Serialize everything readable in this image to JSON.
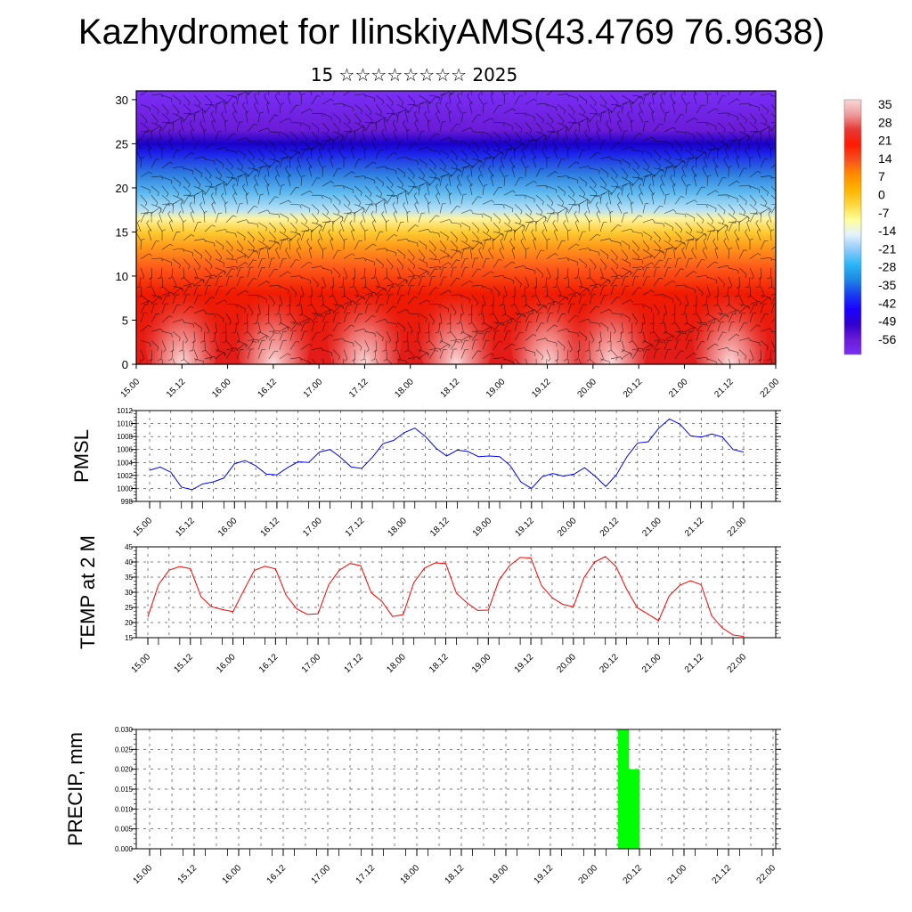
{
  "header": {
    "title": "Kazhydromet for IlinskiyAMS(43.4769 76.9638)",
    "subtitle": "15 ☆☆☆☆☆☆☆☆ 2025"
  },
  "chart_data": [
    {
      "type": "heatmap",
      "title": "",
      "xlabel": "",
      "ylabel": "",
      "x_ticks": [
        "15.00",
        "15.12",
        "16.00",
        "16.12",
        "17.00",
        "17.12",
        "18.00",
        "18.12",
        "19.00",
        "19.12",
        "20.00",
        "20.12",
        "21.00",
        "21.12",
        "22.00"
      ],
      "y_ticks": [
        0,
        5,
        10,
        15,
        20,
        25,
        30
      ],
      "ylim": [
        0,
        31
      ],
      "colorbar": {
        "labels": [
          35,
          28,
          21,
          14,
          7,
          0,
          -7,
          -14,
          -21,
          -28,
          -35,
          -42,
          -49,
          -56
        ],
        "colors": [
          "#f8d8d8",
          "#ef9a9a",
          "#e53935",
          "#ff1a00",
          "#f4511e",
          "#ff8c00",
          "#ffb300",
          "#ffd740",
          "#ffff99",
          "#e3f2fd",
          "#90caf9",
          "#29b6f6",
          "#1e88e5",
          "#1a3cf0",
          "#1a00ff",
          "#3300cc",
          "#6a1bd6",
          "#7b2ff7"
        ]
      },
      "overlay": "wind barbs",
      "band_colors": [
        {
          "z": 0,
          "color": "#e21c1c"
        },
        {
          "z": 8,
          "color": "#f01a00"
        },
        {
          "z": 11,
          "color": "#ff5a1a"
        },
        {
          "z": 13.5,
          "color": "#ff9e1a"
        },
        {
          "z": 15,
          "color": "#ffcc33"
        },
        {
          "z": 16.5,
          "color": "#fff3a0"
        },
        {
          "z": 17.5,
          "color": "#b7e1f5"
        },
        {
          "z": 19.5,
          "color": "#5cb8ee"
        },
        {
          "z": 21.5,
          "color": "#2e7fe0"
        },
        {
          "z": 24,
          "color": "#1c1ee8"
        },
        {
          "z": 25,
          "color": "#1a00c8"
        },
        {
          "z": 26.5,
          "color": "#6a1bd6"
        },
        {
          "z": 31,
          "color": "#7b2ff7"
        }
      ],
      "hot_cells": [
        1.0,
        3.0,
        5.0,
        7.0,
        9.0,
        10.4,
        13.0
      ]
    },
    {
      "type": "line",
      "ylabel": "PMSL",
      "ylim": [
        998,
        1012
      ],
      "y_ticks": [
        998,
        1000,
        1002,
        1004,
        1006,
        1008,
        1010,
        1012
      ],
      "x_ticks": [
        "15.00",
        "15.12",
        "16.00",
        "16.12",
        "17.00",
        "17.12",
        "18.00",
        "18.12",
        "19.00",
        "19.12",
        "20.00",
        "20.12",
        "21.00",
        "21.12",
        "22.00"
      ],
      "color": "#0000ff",
      "values": [
        1002.8,
        1003.3,
        1002.5,
        1000.2,
        999.8,
        1000.7,
        1001.0,
        1001.6,
        1003.8,
        1004.3,
        1003.5,
        1002.2,
        1002.1,
        1003.2,
        1004.1,
        1004.0,
        1005.6,
        1006.0,
        1004.8,
        1003.3,
        1003.1,
        1004.8,
        1006.9,
        1007.4,
        1008.6,
        1009.3,
        1008.0,
        1006.2,
        1005.0,
        1005.9,
        1005.7,
        1004.9,
        1005.0,
        1004.9,
        1003.5,
        1001.0,
        1000.0,
        1001.8,
        1002.3,
        1001.9,
        1002.2,
        1003.2,
        1001.9,
        1000.3,
        1002.1,
        1004.9,
        1007.0,
        1007.2,
        1009.3,
        1010.7,
        1009.9,
        1008.1,
        1007.9,
        1008.4,
        1007.9,
        1006.0,
        1005.6
      ]
    },
    {
      "type": "line",
      "ylabel": "TEMP at 2 M",
      "ylim": [
        15,
        45
      ],
      "y_ticks": [
        15,
        20,
        25,
        30,
        35,
        40,
        45
      ],
      "x_ticks": [
        "15.00",
        "15.12",
        "16.00",
        "16.12",
        "17.00",
        "17.12",
        "18.00",
        "18.12",
        "19.00",
        "19.12",
        "20.00",
        "20.12",
        "21.00",
        "21.12",
        "22.00"
      ],
      "color": "#ff0000",
      "values": [
        21.9,
        32.5,
        37.3,
        38.5,
        37.8,
        28.5,
        25.2,
        24.3,
        23.6,
        30.5,
        37.2,
        38.6,
        37.7,
        29.0,
        24.5,
        22.7,
        22.9,
        32.5,
        37.3,
        39.5,
        38.8,
        29.8,
        27.0,
        22.0,
        22.6,
        33.2,
        38.0,
        39.7,
        39.5,
        29.7,
        26.5,
        24.0,
        24.1,
        34.0,
        38.8,
        41.5,
        41.3,
        32.2,
        28.2,
        26.0,
        25.2,
        34.9,
        40.0,
        41.8,
        38.5,
        31.0,
        24.9,
        22.8,
        20.6,
        28.8,
        32.3,
        33.8,
        32.5,
        22.2,
        18.2,
        15.9,
        15.4
      ]
    },
    {
      "type": "bar",
      "ylabel": "PRECIP, mm",
      "ylim": [
        0,
        0.03
      ],
      "y_ticks": [
        "0.000",
        "0.005",
        "0.010",
        "0.015",
        "0.020",
        "0.025",
        "0.030"
      ],
      "x_ticks": [
        "15.00",
        "15.12",
        "16.00",
        "16.12",
        "17.00",
        "17.12",
        "18.00",
        "18.12",
        "19.00",
        "19.12",
        "20.00",
        "20.12",
        "21.00",
        "21.12",
        "22.00"
      ],
      "color": "#00ff00",
      "bars": [
        {
          "x": 5.32,
          "value": 0.03
        },
        {
          "x": 5.44,
          "value": 0.02
        }
      ]
    }
  ]
}
